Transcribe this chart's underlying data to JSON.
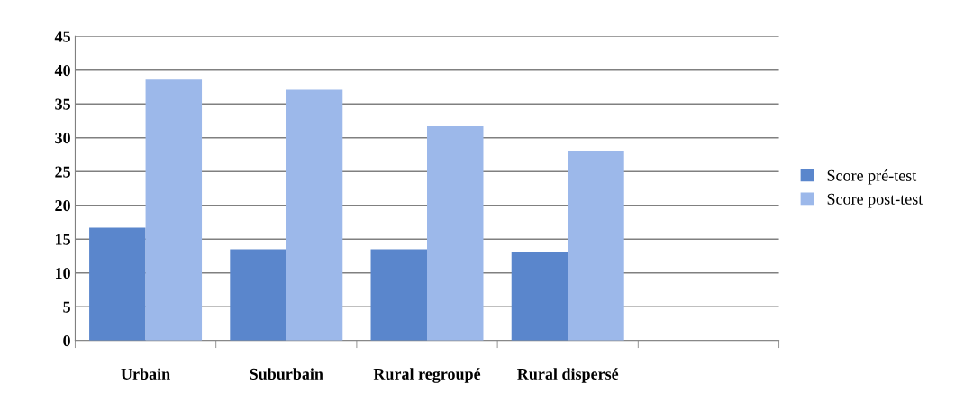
{
  "chart_data": {
    "type": "bar",
    "categories": [
      "Urbain",
      "Suburbain",
      "Rural regroupé",
      "Rural dispersé",
      null
    ],
    "series": [
      {
        "name": "Score pré-test",
        "color": "#5a86cc",
        "values": [
          16.7,
          13.5,
          13.5,
          13.1,
          null
        ]
      },
      {
        "name": "Score post-test",
        "color": "#9cb8ea",
        "values": [
          38.6,
          37.1,
          31.7,
          28.0,
          null
        ]
      }
    ],
    "ylim": [
      0,
      45
    ],
    "yticks": [
      0,
      5,
      10,
      15,
      20,
      25,
      30,
      35,
      40,
      45
    ],
    "grid": "y",
    "legend": "right"
  }
}
